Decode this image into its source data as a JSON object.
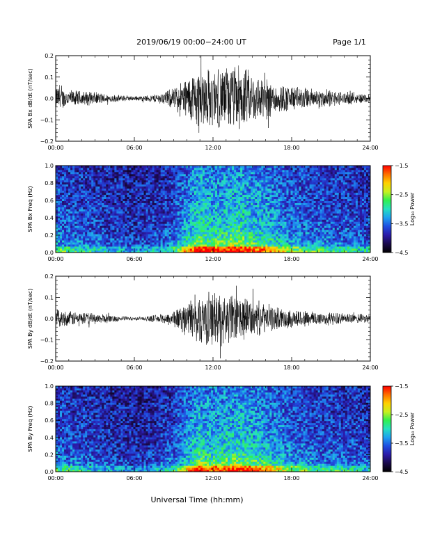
{
  "header": {
    "title": "2019/06/19   00:00−24:00 UT",
    "page": "Page 1/1"
  },
  "xaxis": {
    "label": "Universal Time (hh:mm)",
    "ticks": [
      "00:00",
      "06:00",
      "12:00",
      "18:00",
      "24:00"
    ],
    "range": [
      0,
      24
    ]
  },
  "colors": {
    "colormap": [
      "#000000",
      "#1a0a4a",
      "#2b1aa8",
      "#1f4de0",
      "#1fa0f0",
      "#25e0c0",
      "#30f050",
      "#c8f020",
      "#ffd000",
      "#ff7000",
      "#ff0000"
    ]
  },
  "chart_data": [
    {
      "id": "bx-waveform",
      "type": "line",
      "ylabel": "SPA Bx dB/dt (nT/sec)",
      "ylim": [
        -0.2,
        0.2
      ],
      "yticks": [
        "−0.2",
        "−0.1",
        "0.0",
        "0.1",
        "0.2"
      ],
      "x": [
        0,
        1,
        2,
        3,
        4,
        5,
        6,
        7,
        8,
        9,
        10,
        11,
        12,
        13,
        14,
        15,
        16,
        17,
        18,
        19,
        20,
        21,
        22,
        23,
        24
      ],
      "envelope": [
        0.06,
        0.04,
        0.035,
        0.03,
        0.02,
        0.015,
        0.01,
        0.015,
        0.025,
        0.05,
        0.1,
        0.16,
        0.13,
        0.15,
        0.16,
        0.12,
        0.1,
        0.07,
        0.06,
        0.05,
        0.045,
        0.04,
        0.03,
        0.025,
        0.02
      ]
    },
    {
      "id": "bx-spectrogram",
      "type": "heatmap",
      "ylabel": "SPA Bx Freq (Hz)",
      "ylim": [
        0,
        1.0
      ],
      "yticks": [
        "0.0",
        "0.2",
        "0.4",
        "0.6",
        "0.8",
        "1.0"
      ],
      "colorbar": {
        "label": "Log₁₀ Power",
        "range": [
          -4.5,
          -1.5
        ],
        "ticks": [
          "−1.5",
          "−2.5",
          "−3.5",
          "−4.5"
        ]
      },
      "x": [
        0,
        1,
        2,
        3,
        4,
        5,
        6,
        7,
        8,
        9,
        10,
        11,
        12,
        13,
        14,
        15,
        16,
        17,
        18,
        19,
        20,
        21,
        22,
        23,
        24
      ],
      "activity": [
        0.45,
        0.4,
        0.38,
        0.35,
        0.3,
        0.28,
        0.25,
        0.28,
        0.32,
        0.4,
        0.65,
        0.85,
        0.75,
        0.8,
        0.85,
        0.75,
        0.7,
        0.6,
        0.5,
        0.45,
        0.42,
        0.4,
        0.38,
        0.35,
        0.32
      ]
    },
    {
      "id": "by-waveform",
      "type": "line",
      "ylabel": "SPA By dB/dt (nT/sec)",
      "ylim": [
        -0.2,
        0.2
      ],
      "yticks": [
        "−0.2",
        "−0.1",
        "0.0",
        "0.1",
        "0.2"
      ],
      "x": [
        0,
        1,
        2,
        3,
        4,
        5,
        6,
        7,
        8,
        9,
        10,
        11,
        12,
        13,
        14,
        15,
        16,
        17,
        18,
        19,
        20,
        21,
        22,
        23,
        24
      ],
      "envelope": [
        0.04,
        0.035,
        0.03,
        0.025,
        0.02,
        0.012,
        0.008,
        0.012,
        0.02,
        0.04,
        0.08,
        0.12,
        0.13,
        0.12,
        0.11,
        0.09,
        0.07,
        0.05,
        0.045,
        0.04,
        0.035,
        0.03,
        0.025,
        0.022,
        0.02
      ]
    },
    {
      "id": "by-spectrogram",
      "type": "heatmap",
      "ylabel": "SPA By Freq (Hz)",
      "ylim": [
        0,
        1.0
      ],
      "yticks": [
        "0.0",
        "0.2",
        "0.4",
        "0.6",
        "0.8",
        "1.0"
      ],
      "colorbar": {
        "label": "Log₁₀ Power",
        "range": [
          -4.5,
          -1.5
        ],
        "ticks": [
          "−1.5",
          "−2.5",
          "−3.5",
          "−4.5"
        ]
      },
      "x": [
        0,
        1,
        2,
        3,
        4,
        5,
        6,
        7,
        8,
        9,
        10,
        11,
        12,
        13,
        14,
        15,
        16,
        17,
        18,
        19,
        20,
        21,
        22,
        23,
        24
      ],
      "activity": [
        0.42,
        0.38,
        0.35,
        0.32,
        0.28,
        0.25,
        0.22,
        0.25,
        0.3,
        0.38,
        0.6,
        0.8,
        0.72,
        0.78,
        0.82,
        0.74,
        0.68,
        0.58,
        0.48,
        0.44,
        0.4,
        0.38,
        0.36,
        0.34,
        0.3
      ]
    }
  ]
}
